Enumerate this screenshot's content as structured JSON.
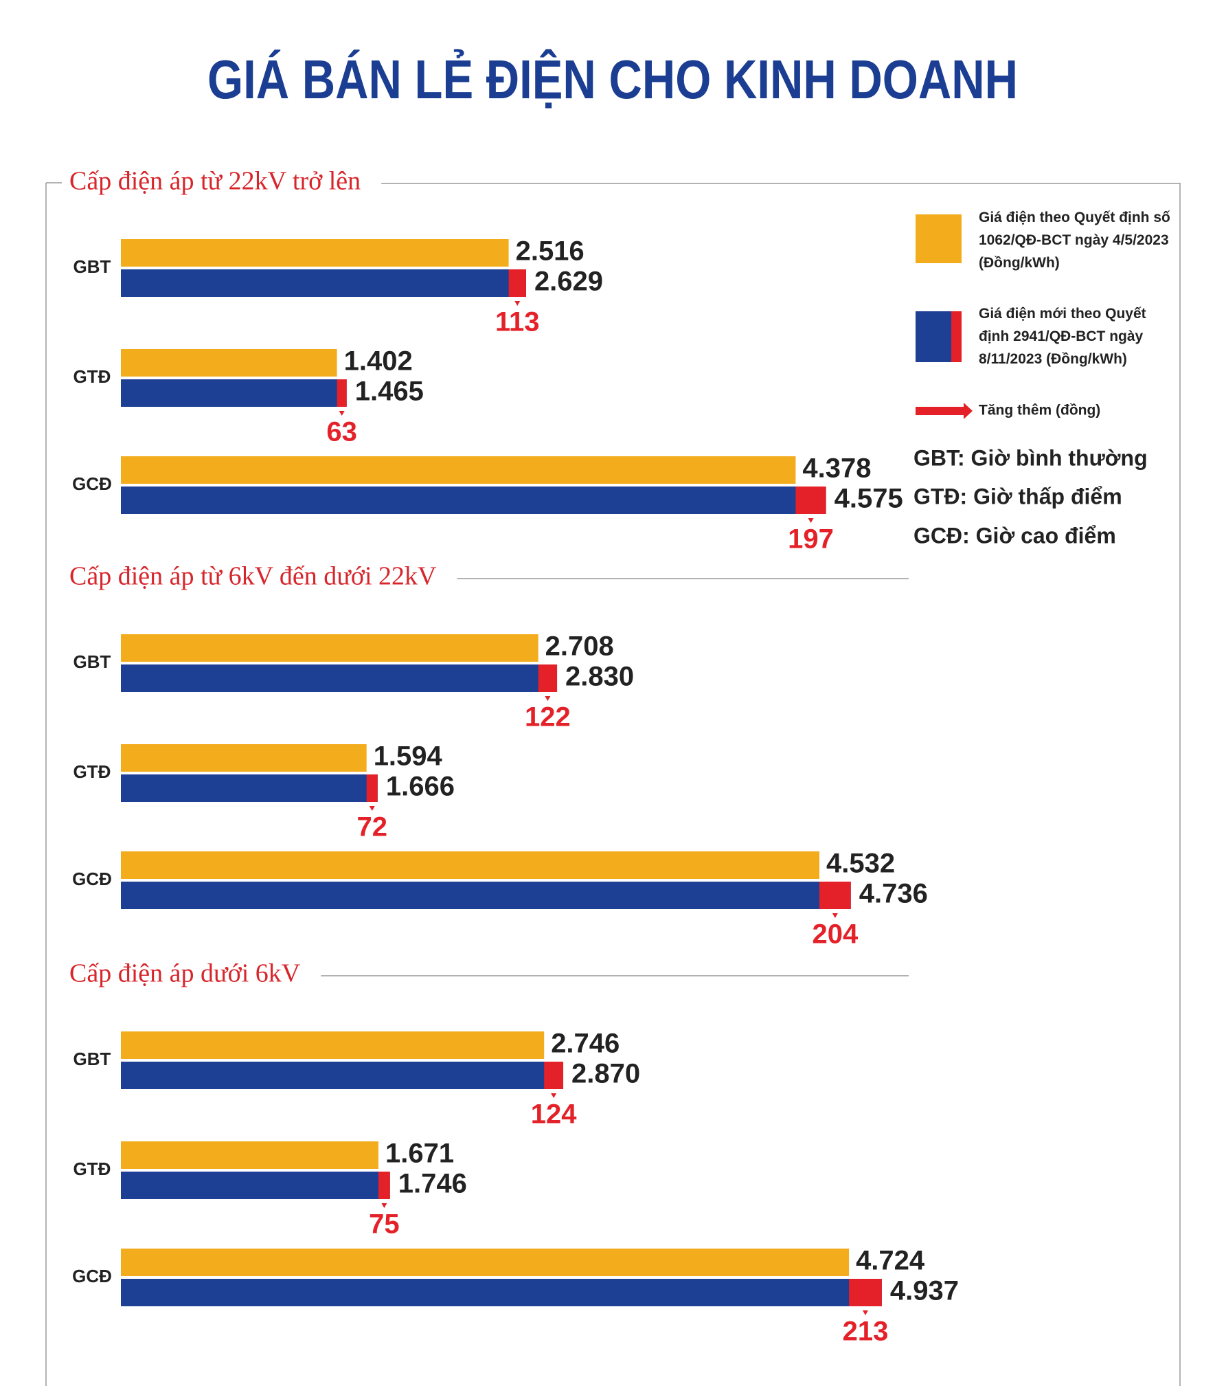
{
  "title": "GIÁ BÁN LẺ ĐIỆN CHO KINH DOANH",
  "notes": [
    "GBT: Giờ bình thường",
    "GTĐ: Giờ thấp điểm",
    "GCĐ: Giờ cao điểm"
  ],
  "chart_data": [
    {
      "type": "bar",
      "subtitle": "Cấp điện áp từ 22kV trở lên",
      "categories": [
        "GBT",
        "GTĐ",
        "GCĐ"
      ],
      "series": [
        {
          "name": "Giá điện theo Quyết định số 1062/QĐ-BCT ngày 4/5/2023 (Đồng/kWh)",
          "color": "#f2ac1c",
          "values": [
            2516,
            1402,
            4378
          ],
          "value_labels": [
            "2.516",
            "1.402",
            "4.378"
          ]
        },
        {
          "name": "Giá điện mới theo Quyết định 2941/QĐ-BCT ngày 8/11/2023 (Đồng/kWh)",
          "color": "#1d3f94",
          "values": [
            2629,
            1465,
            4575
          ],
          "value_labels": [
            "2.629",
            "1.465",
            "4.575"
          ]
        },
        {
          "name": "Tăng thêm (đồng)",
          "color": "#e42128",
          "values": [
            113,
            63,
            197
          ]
        }
      ]
    },
    {
      "type": "bar",
      "subtitle": "Cấp điện áp từ 6kV đến dưới 22kV",
      "categories": [
        "GBT",
        "GTĐ",
        "GCĐ"
      ],
      "series": [
        {
          "color": "#f2ac1c",
          "values": [
            2708,
            1594,
            4532
          ],
          "value_labels": [
            "2.708",
            "1.594",
            "4.532"
          ]
        },
        {
          "color": "#1d3f94",
          "values": [
            2830,
            1666,
            4736
          ],
          "value_labels": [
            "2.830",
            "1.666",
            "4.736"
          ]
        },
        {
          "color": "#e42128",
          "values": [
            122,
            72,
            204
          ]
        }
      ]
    },
    {
      "type": "bar",
      "subtitle": "Cấp điện áp dưới 6kV",
      "categories": [
        "GBT",
        "GTĐ",
        "GCĐ"
      ],
      "series": [
        {
          "color": "#f2ac1c",
          "values": [
            2746,
            1671,
            4724
          ],
          "value_labels": [
            "2.746",
            "1.671",
            "4.724"
          ]
        },
        {
          "color": "#1d3f94",
          "values": [
            2870,
            1746,
            4937
          ],
          "value_labels": [
            "2.870",
            "1.746",
            "4.937"
          ]
        },
        {
          "color": "#e42128",
          "values": [
            124,
            75,
            213
          ]
        }
      ]
    }
  ]
}
